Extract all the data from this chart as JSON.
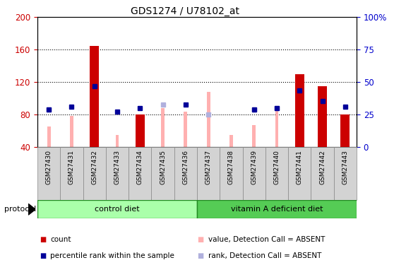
{
  "title": "GDS1274 / U78102_at",
  "samples": [
    "GSM27430",
    "GSM27431",
    "GSM27432",
    "GSM27433",
    "GSM27434",
    "GSM27435",
    "GSM27436",
    "GSM27437",
    "GSM27438",
    "GSM27439",
    "GSM27440",
    "GSM27441",
    "GSM27442",
    "GSM27443"
  ],
  "count_values": [
    null,
    null,
    165,
    null,
    80,
    null,
    null,
    null,
    null,
    null,
    null,
    130,
    115,
    80
  ],
  "percentile_rank": [
    86,
    90,
    115,
    84,
    88,
    null,
    92,
    null,
    null,
    86,
    88,
    110,
    97,
    90
  ],
  "absent_value": [
    65,
    78,
    null,
    55,
    null,
    88,
    84,
    108,
    55,
    67,
    88,
    null,
    null,
    null
  ],
  "absent_rank": [
    86,
    null,
    null,
    null,
    null,
    92,
    null,
    80,
    null,
    86,
    88,
    null,
    null,
    null
  ],
  "ylim_left": [
    40,
    200
  ],
  "ylim_right": [
    0,
    100
  ],
  "yticks_left": [
    40,
    80,
    120,
    160,
    200
  ],
  "yticks_right": [
    0,
    25,
    50,
    75,
    100
  ],
  "ylabel_left_color": "#cc0000",
  "ylabel_right_color": "#0000cc",
  "count_color": "#cc0000",
  "percentile_color": "#000099",
  "absent_value_color": "#ffb0b0",
  "absent_rank_color": "#b0b0dd",
  "background_color": "#ffffff",
  "grid_dotted_at": [
    80,
    120,
    160
  ],
  "control_diet_color": "#aaffaa",
  "vitaminA_diet_color": "#55cc55",
  "legend_items": [
    {
      "label": "count",
      "color": "#cc0000"
    },
    {
      "label": "percentile rank within the sample",
      "color": "#000099"
    },
    {
      "label": "value, Detection Call = ABSENT",
      "color": "#ffb0b0"
    },
    {
      "label": "rank, Detection Call = ABSENT",
      "color": "#b0b0dd"
    }
  ]
}
